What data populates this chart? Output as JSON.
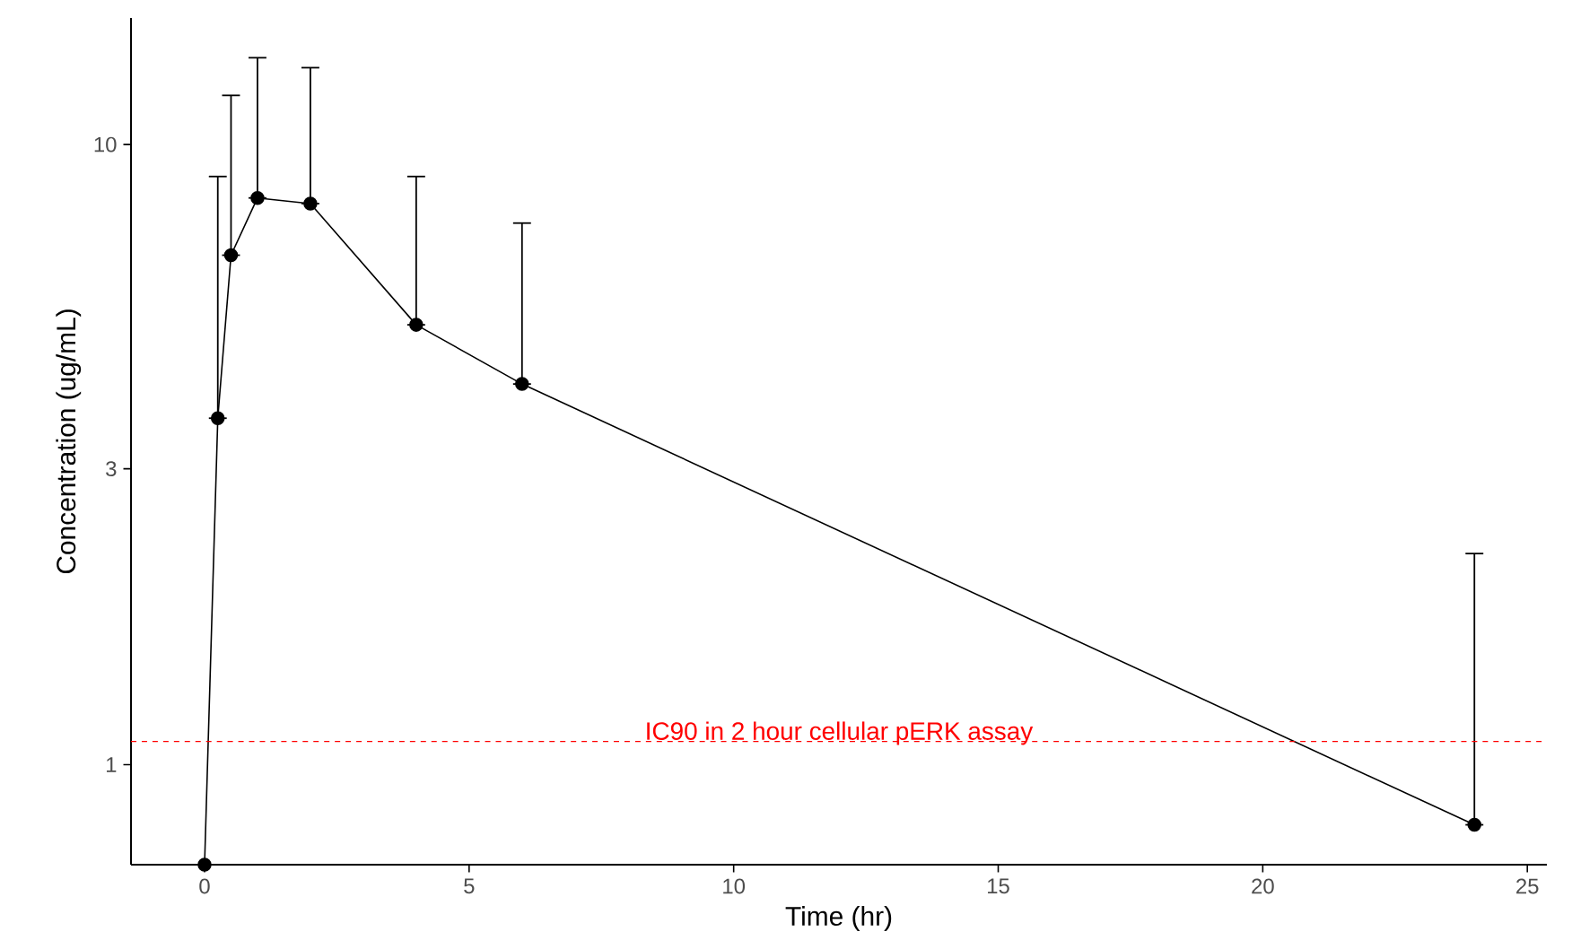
{
  "chart_data": {
    "type": "line",
    "xlabel": "Time (hr)",
    "ylabel": "Concentration (ug/mL)",
    "x": [
      0,
      0.25,
      0.5,
      1,
      2,
      4,
      6,
      24
    ],
    "series": [
      {
        "color": "#000000",
        "values": [
          0.69,
          3.62,
          6.63,
          8.2,
          8.03,
          5.12,
          4.11,
          0.8
        ],
        "errors": [
          null,
          [
            3.62,
            8.88
          ],
          [
            6.63,
            12.0
          ],
          [
            8.2,
            13.8
          ],
          [
            8.03,
            13.3
          ],
          [
            5.12,
            8.88
          ],
          [
            4.11,
            7.47
          ],
          [
            0.8,
            2.19
          ]
        ]
      }
    ],
    "log": "y",
    "xlim": [
      -1.39,
      25.37
    ],
    "ylim": [
      0.69,
      16
    ],
    "xticks": [
      0,
      5,
      10,
      15,
      20,
      25
    ],
    "yticks": [
      1,
      3,
      10
    ],
    "ref_lines": [
      {
        "axis": "y",
        "value": 1.09,
        "label": "IC90 in 2 hour cellular pERK assay",
        "color": "#ff0000",
        "line_style": "dashed"
      }
    ],
    "marker": "circle",
    "line_style": "solid"
  }
}
